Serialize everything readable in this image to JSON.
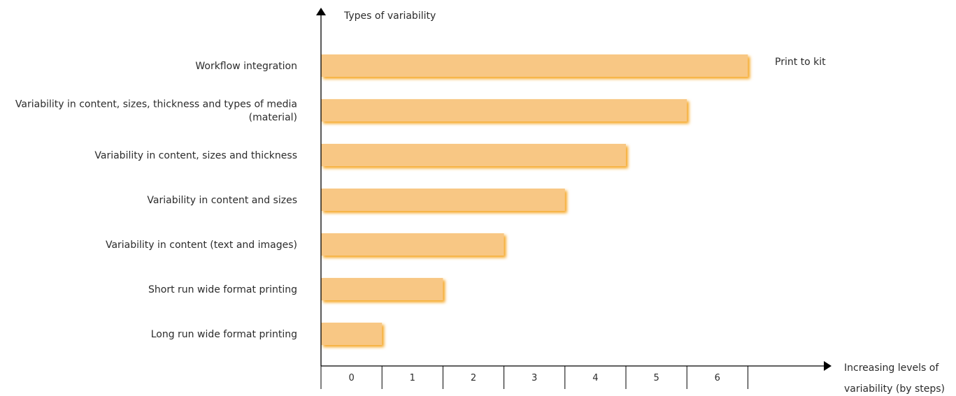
{
  "chart_data": {
    "type": "bar",
    "orientation": "horizontal",
    "ylabel": "Types of variability",
    "xlabel_line1": "Increasing levels of",
    "xlabel_line2": "variability (by steps)",
    "categories": [
      "Workflow integration",
      "Variability in content, sizes, thickness and types of media (material)",
      "Variability in content, sizes and thickness",
      "Variability in content and sizes",
      "Variability in content (text and images)",
      "Short run wide format printing",
      "Long run wide format printing"
    ],
    "category_lines": [
      [
        "Workflow integration"
      ],
      [
        "Variability in content, sizes, thickness and types of media",
        "(material)"
      ],
      [
        "Variability in content, sizes and thickness"
      ],
      [
        "Variability in content and sizes"
      ],
      [
        "Variability in content (text and images)"
      ],
      [
        "Short run wide format printing"
      ],
      [
        "Long run wide format printing"
      ]
    ],
    "values": [
      7,
      6,
      5,
      4,
      3,
      2,
      1
    ],
    "x_ticks": [
      "0",
      "1",
      "2",
      "3",
      "4",
      "5",
      "6"
    ],
    "xlim": [
      0,
      7
    ],
    "annotation": "Print to kit",
    "bar_color": "#f8c784",
    "shadow_color": "#f5a623",
    "grid": false
  }
}
